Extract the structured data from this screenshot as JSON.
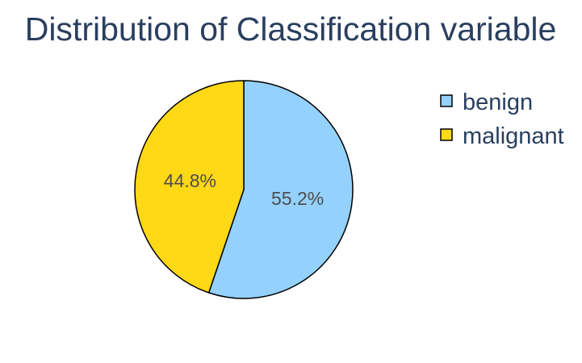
{
  "chart_data": {
    "type": "pie",
    "title": "Distribution of Classification variable",
    "categories": [
      "benign",
      "malignant"
    ],
    "values": [
      55.2,
      44.8
    ],
    "labels": [
      "55.2%",
      "44.8%"
    ],
    "colors": [
      "#94d1fd",
      "#ffd816"
    ],
    "legend": {
      "entries": [
        "benign",
        "malignant"
      ],
      "placement": "top-right"
    }
  }
}
